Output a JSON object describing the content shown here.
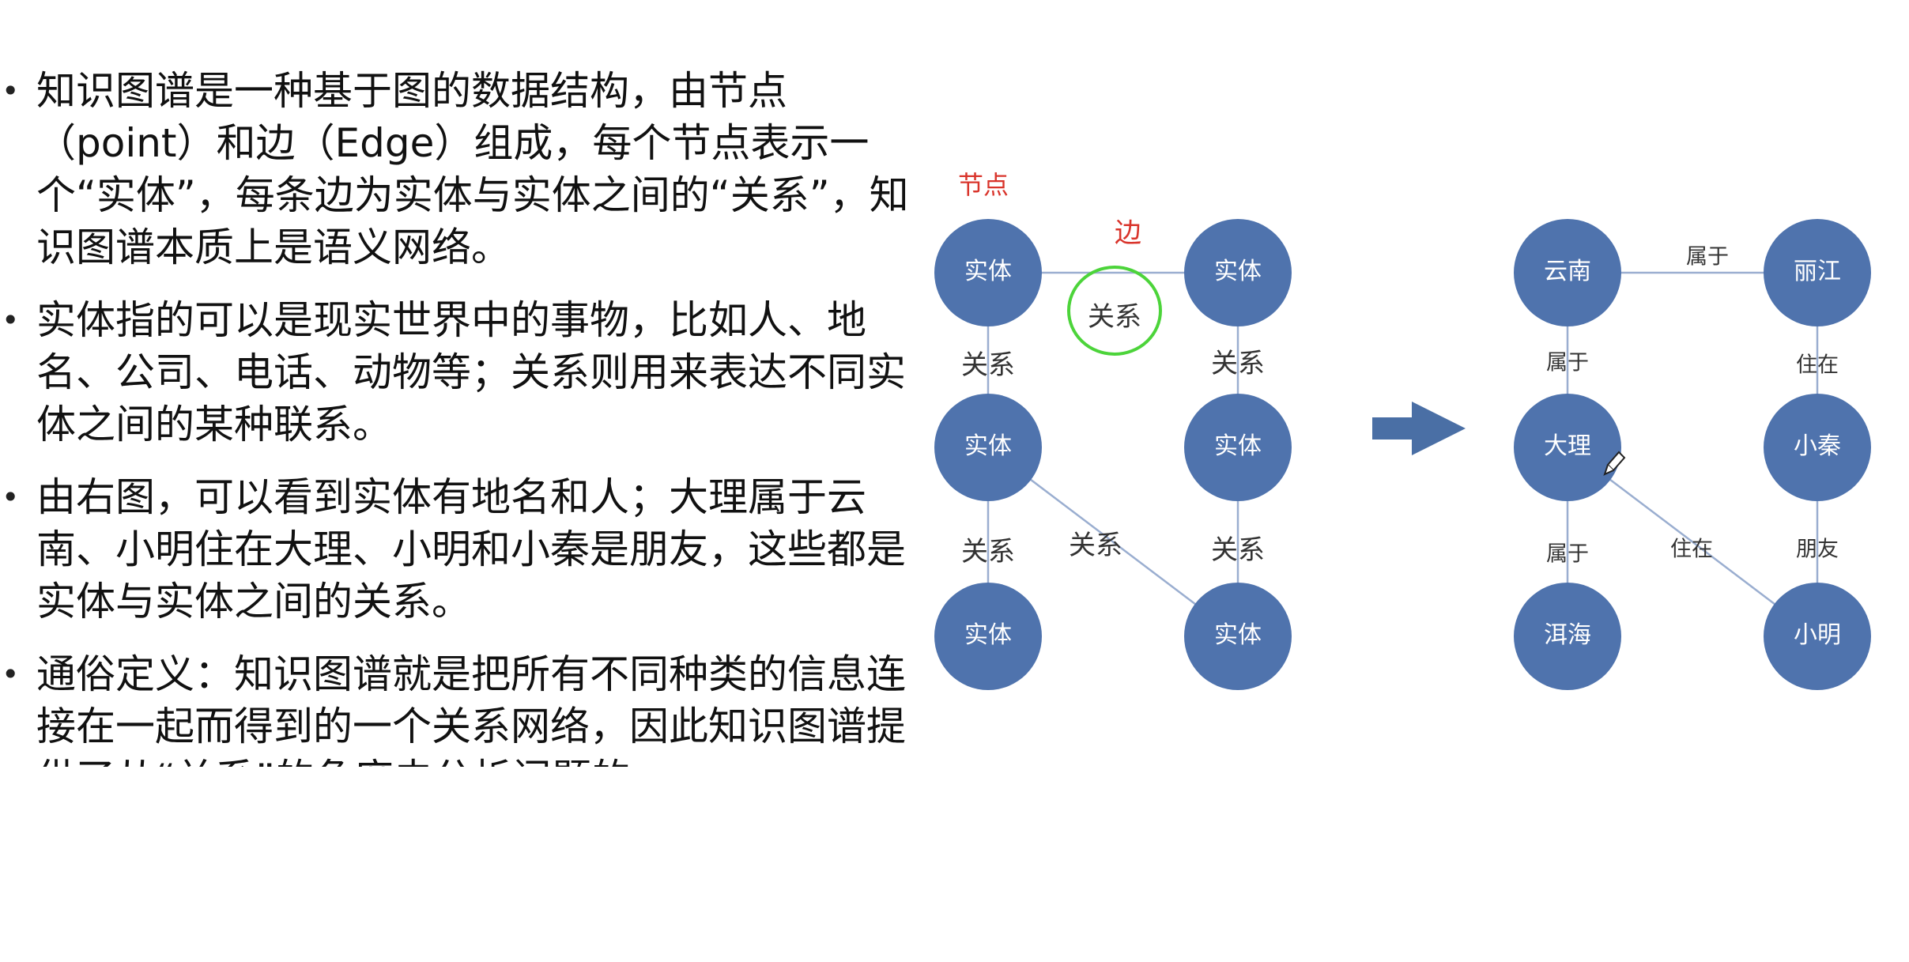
{
  "bullets": [
    "知识图谱是一种基于图的数据结构，由节点（point）和边（Edge）组成，每个节点表示一个“实体”，每条边为实体与实体之间的“关系”，知识图谱本质上是语义网络。",
    "实体指的可以是现实世界中的事物，比如人、地名、公司、电话、动物等；关系则用来表达不同实体之间的某种联系。",
    "由右图，可以看到实体有地名和人；大理属于云南、小明住在大理、小明和小秦是朋友，这些都是实体与实体之间的关系。",
    "通俗定义：知识图谱就是把所有不同种类的信息连接在一起而得到的一个关系网络，因此知识图谱提供了从“关系”的角度去分析问题的"
  ],
  "left_graph": {
    "node_caption": "节点",
    "edge_caption": "边",
    "nodes": [
      "实体",
      "实体",
      "实体",
      "实体",
      "实体",
      "实体"
    ],
    "edges": [
      {
        "from": 0,
        "to": 1,
        "label": "关系"
      },
      {
        "from": 0,
        "to": 2,
        "label": "关系"
      },
      {
        "from": 1,
        "to": 3,
        "label": "关系"
      },
      {
        "from": 2,
        "to": 4,
        "label": "关系"
      },
      {
        "from": 2,
        "to": 5,
        "label": "关系"
      },
      {
        "from": 3,
        "to": 5,
        "label": "关系"
      }
    ]
  },
  "right_graph": {
    "nodes": [
      "云南",
      "丽江",
      "大理",
      "小秦",
      "洱海",
      "小明"
    ],
    "edges": [
      {
        "from": 0,
        "to": 1,
        "label": "属于"
      },
      {
        "from": 0,
        "to": 2,
        "label": "属于"
      },
      {
        "from": 1,
        "to": 3,
        "label": "住在"
      },
      {
        "from": 2,
        "to": 4,
        "label": "属于"
      },
      {
        "from": 2,
        "to": 5,
        "label": "住在"
      },
      {
        "from": 3,
        "to": 5,
        "label": "朋友"
      }
    ]
  },
  "colors": {
    "node_fill": "#4f73ad",
    "node_text": "#ffffff",
    "edge_line": "#9aaed0",
    "caption_red": "#d9342b",
    "highlight_circle": "#4cd43a",
    "arrow_fill": "#4a6fa5",
    "text": "#111111"
  },
  "icons": {
    "arrow": "right-arrow-icon",
    "cursor": "pencil-cursor-icon"
  }
}
